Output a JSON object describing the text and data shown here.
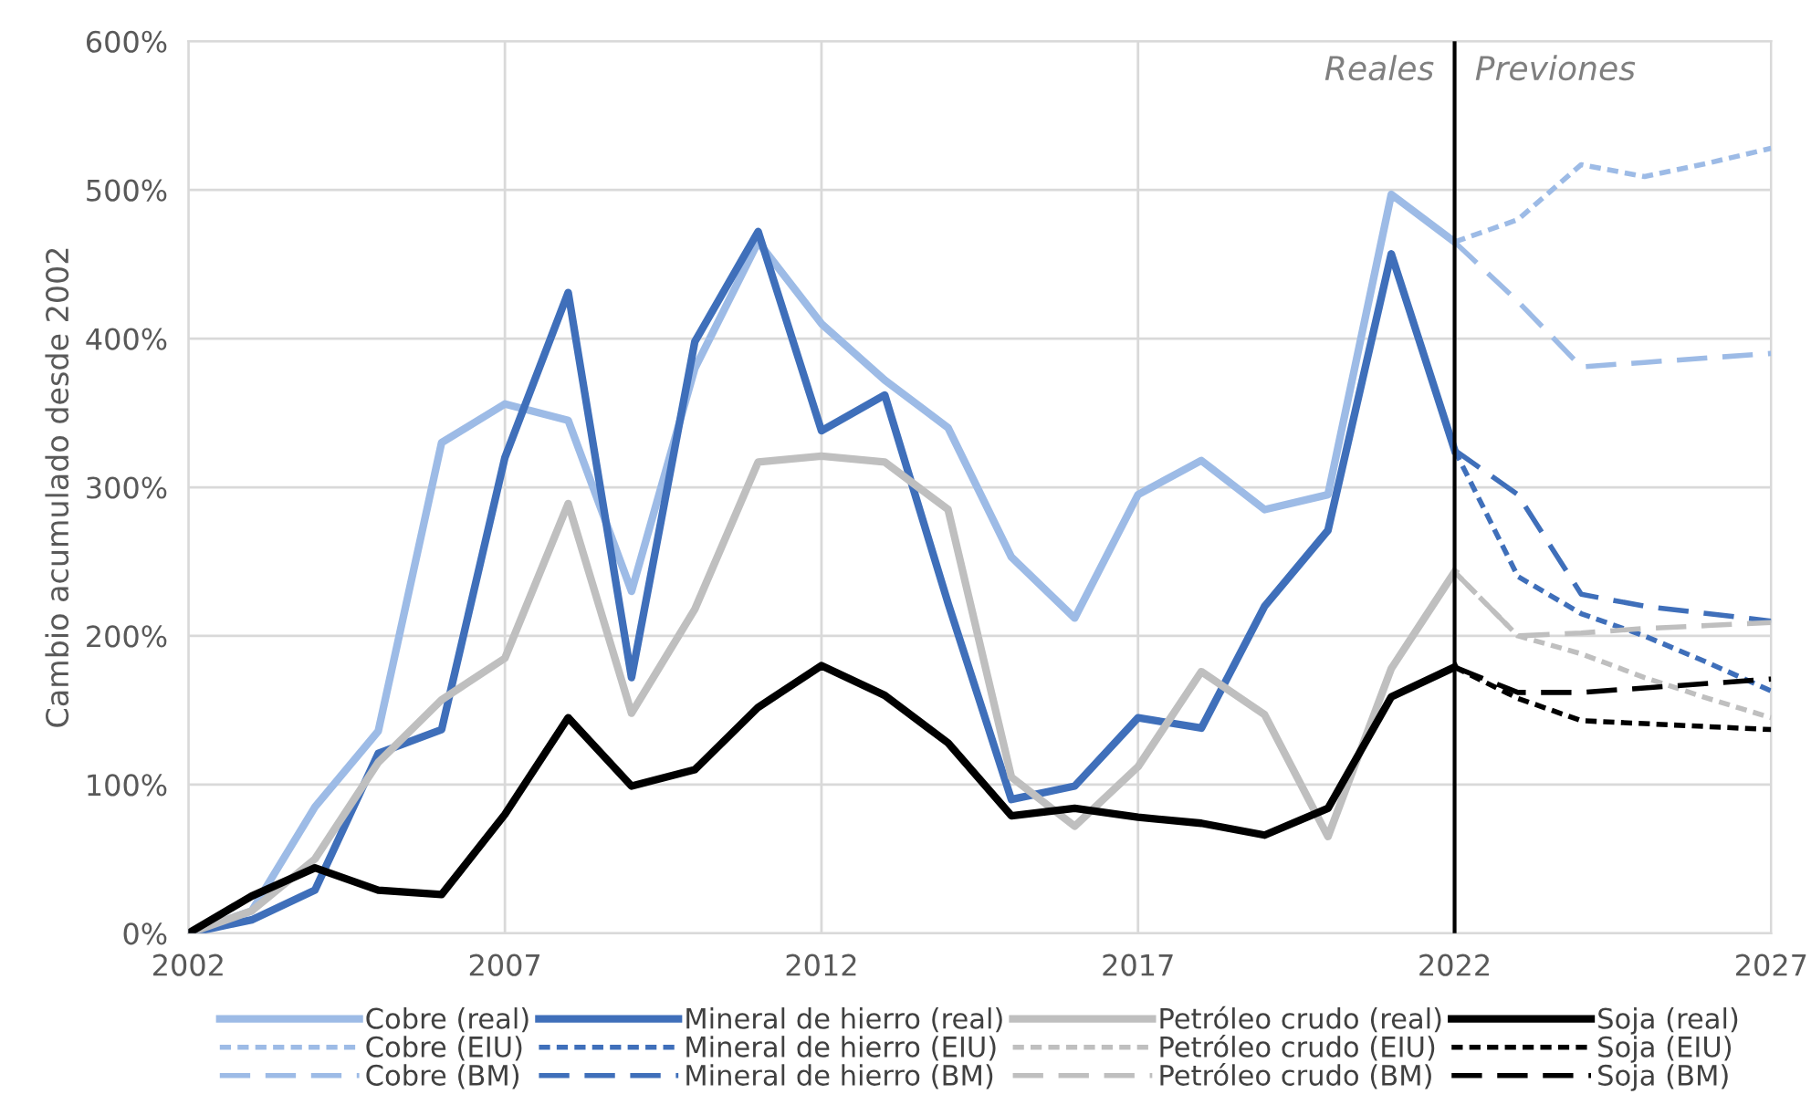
{
  "chart_data": {
    "type": "line",
    "ylabel": "Cambio acumulado desde 2002",
    "xlim": [
      2002,
      2027
    ],
    "xticks": [
      2002,
      2007,
      2012,
      2017,
      2022,
      2027
    ],
    "ylim": [
      0,
      600
    ],
    "yticks": [
      {
        "value": 0,
        "label": "0%"
      },
      {
        "value": 100,
        "label": "100%"
      },
      {
        "value": 200,
        "label": "200%"
      },
      {
        "value": 300,
        "label": "300%"
      },
      {
        "value": 400,
        "label": "400%"
      },
      {
        "value": 500,
        "label": "500%"
      },
      {
        "value": 600,
        "label": "600%"
      }
    ],
    "grid": true,
    "legend": "bottom",
    "ref_lines": [
      {
        "axis": "x",
        "value": 2022,
        "color": "#000000"
      }
    ],
    "annotations": [
      {
        "text": "Reales",
        "x": 2022,
        "y": 580
      },
      {
        "text": "Previones",
        "x": 2022,
        "y": 580
      }
    ],
    "series": [
      {
        "name": "Cobre (real)",
        "color": "#9dbbe6",
        "line_style": "solid",
        "x": [
          2002,
          2003,
          2004,
          2005,
          2006,
          2007,
          2008,
          2009,
          2010,
          2011,
          2012,
          2013,
          2014,
          2015,
          2016,
          2017,
          2018,
          2019,
          2020,
          2021,
          2022
        ],
        "values": [
          0,
          15,
          85,
          136,
          330,
          356,
          345,
          230,
          380,
          465,
          410,
          372,
          340,
          253,
          212,
          295,
          318,
          285,
          295,
          497,
          465
        ]
      },
      {
        "name": "Cobre (EIU)",
        "color": "#9dbbe6",
        "line_style": "dotted",
        "x": [
          2022,
          2023,
          2024,
          2025,
          2026,
          2027
        ],
        "values": [
          465,
          480,
          517,
          509,
          518,
          528
        ]
      },
      {
        "name": "Cobre (BM)",
        "color": "#9dbbe6",
        "line_style": "dashed",
        "x": [
          2022,
          2023,
          2024,
          2025,
          2026,
          2027
        ],
        "values": [
          465,
          425,
          381,
          384,
          387,
          390
        ]
      },
      {
        "name": "Mineral de hierro (real)",
        "color": "#3f6fba",
        "line_style": "solid",
        "x": [
          2002,
          2003,
          2004,
          2005,
          2006,
          2007,
          2008,
          2009,
          2010,
          2011,
          2012,
          2013,
          2014,
          2015,
          2016,
          2017,
          2018,
          2019,
          2020,
          2021,
          2022
        ],
        "values": [
          0,
          9,
          29,
          121,
          137,
          320,
          431,
          172,
          398,
          472,
          338,
          362,
          222,
          90,
          99,
          145,
          138,
          220,
          271,
          457,
          325
        ]
      },
      {
        "name": "Mineral de hierro (EIU)",
        "color": "#3f6fba",
        "line_style": "dotted",
        "x": [
          2022,
          2023,
          2024,
          2025,
          2026,
          2027
        ],
        "values": [
          325,
          240,
          215,
          200,
          182,
          163
        ]
      },
      {
        "name": "Mineral de hierro (BM)",
        "color": "#3f6fba",
        "line_style": "dashed",
        "x": [
          2022,
          2023,
          2024,
          2025,
          2026,
          2027
        ],
        "values": [
          325,
          295,
          228,
          220,
          215,
          210
        ]
      },
      {
        "name": "Petróleo crudo (real)",
        "color": "#bfbfbf",
        "line_style": "solid",
        "x": [
          2002,
          2003,
          2004,
          2005,
          2006,
          2007,
          2008,
          2009,
          2010,
          2011,
          2012,
          2013,
          2014,
          2015,
          2016,
          2017,
          2018,
          2019,
          2020,
          2021,
          2022
        ],
        "values": [
          0,
          15,
          50,
          115,
          157,
          185,
          289,
          148,
          218,
          317,
          321,
          317,
          285,
          105,
          72,
          112,
          176,
          147,
          65,
          178,
          243
        ]
      },
      {
        "name": "Petróleo crudo (EIU)",
        "color": "#bfbfbf",
        "line_style": "dotted",
        "x": [
          2022,
          2023,
          2024,
          2025,
          2026,
          2027
        ],
        "values": [
          243,
          200,
          188,
          172,
          158,
          145
        ]
      },
      {
        "name": "Petróleo crudo (BM)",
        "color": "#bfbfbf",
        "line_style": "dashed",
        "x": [
          2022,
          2023,
          2024,
          2025,
          2026,
          2027
        ],
        "values": [
          243,
          200,
          202,
          205,
          207,
          209
        ]
      },
      {
        "name": "Soja (real)",
        "color": "#000000",
        "line_style": "solid",
        "x": [
          2002,
          2003,
          2004,
          2005,
          2006,
          2007,
          2008,
          2009,
          2010,
          2011,
          2012,
          2013,
          2014,
          2015,
          2016,
          2017,
          2018,
          2019,
          2020,
          2021,
          2022
        ],
        "values": [
          0,
          25,
          44,
          29,
          26,
          80,
          145,
          99,
          110,
          152,
          180,
          160,
          128,
          79,
          84,
          78,
          74,
          66,
          84,
          159,
          179
        ]
      },
      {
        "name": "Soja (EIU)",
        "color": "#000000",
        "line_style": "dotted",
        "x": [
          2022,
          2023,
          2024,
          2025,
          2026,
          2027
        ],
        "values": [
          179,
          158,
          143,
          141,
          139,
          137
        ]
      },
      {
        "name": "Soja (BM)",
        "color": "#000000",
        "line_style": "dashed",
        "x": [
          2022,
          2023,
          2024,
          2025,
          2026,
          2027
        ],
        "values": [
          179,
          162,
          162,
          165,
          168,
          171
        ]
      }
    ]
  }
}
